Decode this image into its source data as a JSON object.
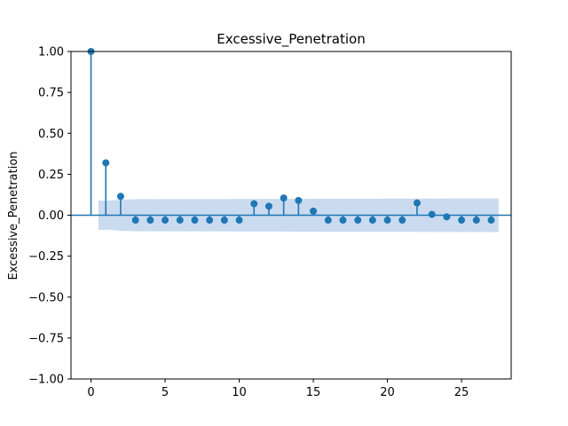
{
  "chart_data": {
    "type": "stem",
    "title": "Excessive_Penetration",
    "xlabel": "",
    "ylabel": "Excessive_Penetration",
    "xlim": [
      -1.35,
      28.35
    ],
    "ylim": [
      -1.0,
      1.0
    ],
    "xticks": [
      0,
      5,
      10,
      15,
      20,
      25
    ],
    "xtick_labels": [
      "0",
      "5",
      "10",
      "15",
      "20",
      "25"
    ],
    "yticks": [
      -1.0,
      -0.75,
      -0.5,
      -0.25,
      0.0,
      0.25,
      0.5,
      0.75,
      1.0
    ],
    "ytick_labels": [
      "−1.00",
      "−0.75",
      "−0.50",
      "−0.25",
      "0.00",
      "0.25",
      "0.50",
      "0.75",
      "1.00"
    ],
    "lags": [
      0,
      1,
      2,
      3,
      4,
      5,
      6,
      7,
      8,
      9,
      10,
      11,
      12,
      13,
      14,
      15,
      16,
      17,
      18,
      19,
      20,
      21,
      22,
      23,
      24,
      25,
      26,
      27
    ],
    "values": [
      1.0,
      0.32,
      0.115,
      -0.03,
      -0.03,
      -0.03,
      -0.03,
      -0.03,
      -0.03,
      -0.03,
      -0.03,
      0.07,
      0.055,
      0.105,
      0.09,
      0.025,
      -0.03,
      -0.03,
      -0.03,
      -0.03,
      -0.03,
      -0.03,
      0.075,
      0.005,
      -0.01,
      -0.03,
      -0.03,
      -0.03
    ],
    "confidence_band": {
      "x": [
        0.5,
        1,
        2,
        3,
        27.5
      ],
      "upper": [
        0.09,
        0.088,
        0.095,
        0.098,
        0.103
      ],
      "lower": [
        -0.09,
        -0.088,
        -0.095,
        -0.098,
        -0.103
      ]
    },
    "grid": false,
    "colors": {
      "stem": "#1f77b4",
      "band": "#aec7e8",
      "zero_line": "#1f77b4"
    }
  }
}
